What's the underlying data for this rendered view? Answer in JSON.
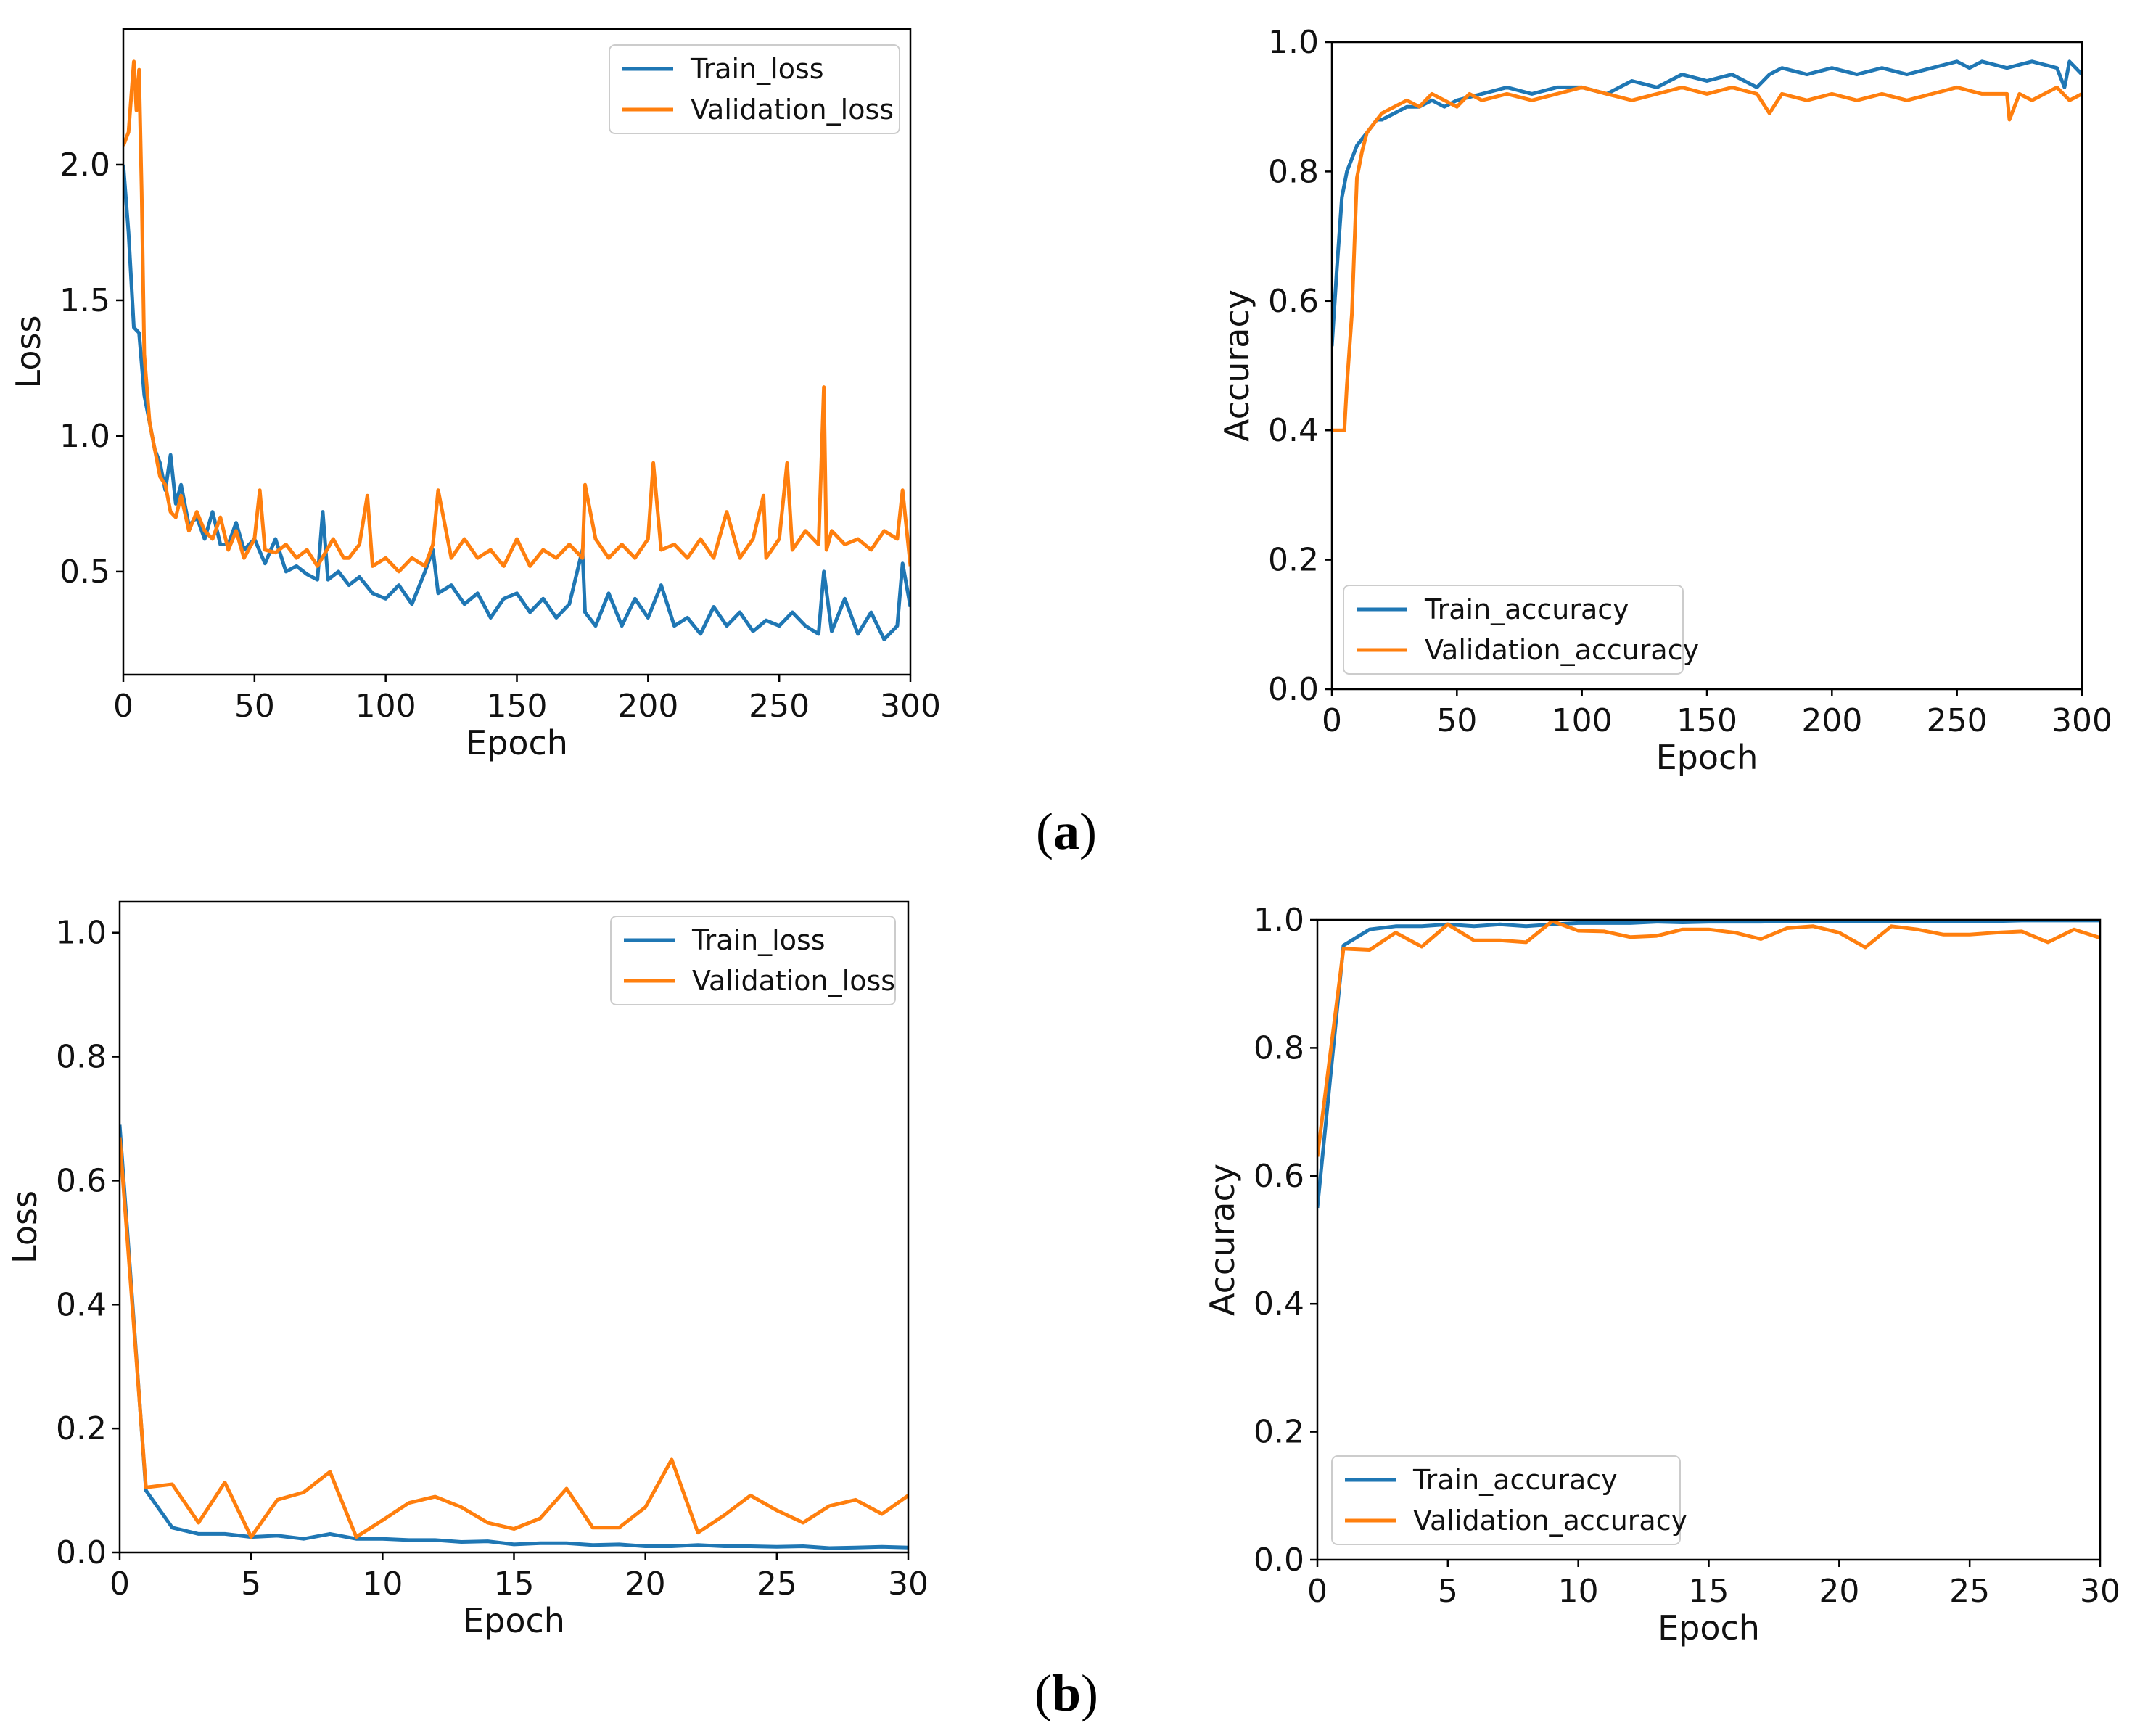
{
  "colors": {
    "train": "#1f77b4",
    "validation": "#ff7f0e",
    "axis": "#000000"
  },
  "captions": {
    "a": {
      "open": "(",
      "letter": "a",
      "close": ")"
    },
    "b": {
      "open": "(",
      "letter": "b",
      "close": ")"
    }
  },
  "chart_data": [
    {
      "id": "a_loss",
      "type": "line",
      "xlabel": "Epoch",
      "ylabel": "Loss",
      "xlim": [
        0,
        300
      ],
      "ylim": [
        0.12,
        2.5
      ],
      "xticks": [
        0,
        50,
        100,
        150,
        200,
        250,
        300
      ],
      "yticks": [
        0.5,
        1.0,
        1.5,
        2.0
      ],
      "xtick_labels": [
        "0",
        "50",
        "100",
        "150",
        "200",
        "250",
        "300"
      ],
      "ytick_labels": [
        "0.5",
        "1.0",
        "1.5",
        "2.0"
      ],
      "legend_position": "top-right",
      "series": [
        {
          "name": "Train_loss",
          "color": "#1f77b4",
          "x": [
            0,
            2,
            4,
            6,
            8,
            10,
            12,
            14,
            16,
            18,
            20,
            22,
            25,
            28,
            31,
            34,
            37,
            40,
            43,
            46,
            50,
            54,
            58,
            62,
            66,
            70,
            74,
            76,
            78,
            82,
            86,
            90,
            95,
            100,
            105,
            110,
            115,
            118,
            120,
            125,
            130,
            135,
            140,
            145,
            150,
            155,
            160,
            165,
            170,
            175,
            176,
            180,
            185,
            190,
            195,
            200,
            205,
            210,
            215,
            220,
            225,
            230,
            235,
            240,
            245,
            250,
            255,
            260,
            265,
            267,
            270,
            275,
            280,
            285,
            290,
            295,
            297,
            300
          ],
          "values": [
            2.0,
            1.75,
            1.4,
            1.38,
            1.15,
            1.05,
            0.95,
            0.9,
            0.8,
            0.93,
            0.75,
            0.82,
            0.67,
            0.7,
            0.62,
            0.72,
            0.6,
            0.6,
            0.68,
            0.58,
            0.62,
            0.53,
            0.62,
            0.5,
            0.52,
            0.49,
            0.47,
            0.72,
            0.47,
            0.5,
            0.45,
            0.48,
            0.42,
            0.4,
            0.45,
            0.38,
            0.5,
            0.58,
            0.42,
            0.45,
            0.38,
            0.42,
            0.33,
            0.4,
            0.42,
            0.35,
            0.4,
            0.33,
            0.38,
            0.58,
            0.35,
            0.3,
            0.42,
            0.3,
            0.4,
            0.33,
            0.45,
            0.3,
            0.33,
            0.27,
            0.37,
            0.3,
            0.35,
            0.28,
            0.32,
            0.3,
            0.35,
            0.3,
            0.27,
            0.5,
            0.28,
            0.4,
            0.27,
            0.35,
            0.25,
            0.3,
            0.53,
            0.37
          ]
        },
        {
          "name": "Validation_loss",
          "color": "#ff7f0e",
          "x": [
            0,
            2,
            4,
            5,
            6,
            7,
            8,
            10,
            12,
            14,
            16,
            18,
            20,
            22,
            25,
            28,
            31,
            34,
            37,
            40,
            43,
            46,
            50,
            52,
            54,
            58,
            62,
            66,
            70,
            74,
            80,
            84,
            86,
            90,
            93,
            95,
            100,
            105,
            110,
            115,
            118,
            120,
            125,
            130,
            135,
            140,
            145,
            150,
            155,
            160,
            165,
            170,
            175,
            176,
            180,
            185,
            190,
            195,
            200,
            202,
            205,
            210,
            215,
            220,
            225,
            230,
            235,
            240,
            244,
            245,
            250,
            253,
            255,
            260,
            265,
            267,
            268,
            270,
            275,
            280,
            285,
            290,
            295,
            297,
            300
          ],
          "values": [
            2.07,
            2.12,
            2.38,
            2.2,
            2.35,
            1.9,
            1.3,
            1.05,
            0.95,
            0.85,
            0.82,
            0.72,
            0.7,
            0.78,
            0.65,
            0.72,
            0.65,
            0.62,
            0.7,
            0.58,
            0.65,
            0.55,
            0.62,
            0.8,
            0.58,
            0.57,
            0.6,
            0.55,
            0.58,
            0.52,
            0.62,
            0.55,
            0.55,
            0.6,
            0.78,
            0.52,
            0.55,
            0.5,
            0.55,
            0.52,
            0.6,
            0.8,
            0.55,
            0.62,
            0.55,
            0.58,
            0.52,
            0.62,
            0.52,
            0.58,
            0.55,
            0.6,
            0.55,
            0.82,
            0.62,
            0.55,
            0.6,
            0.55,
            0.62,
            0.9,
            0.58,
            0.6,
            0.55,
            0.62,
            0.55,
            0.72,
            0.55,
            0.62,
            0.78,
            0.55,
            0.62,
            0.9,
            0.58,
            0.65,
            0.6,
            1.18,
            0.58,
            0.65,
            0.6,
            0.62,
            0.58,
            0.65,
            0.62,
            0.8,
            0.52
          ]
        }
      ]
    },
    {
      "id": "a_accuracy",
      "type": "line",
      "xlabel": "Epoch",
      "ylabel": "Accuracy",
      "xlim": [
        0,
        300
      ],
      "ylim": [
        0.0,
        1.0
      ],
      "xticks": [
        0,
        50,
        100,
        150,
        200,
        250,
        300
      ],
      "yticks": [
        0.0,
        0.2,
        0.4,
        0.6,
        0.8,
        1.0
      ],
      "xtick_labels": [
        "0",
        "50",
        "100",
        "150",
        "200",
        "250",
        "300"
      ],
      "ytick_labels": [
        "0.0",
        "0.2",
        "0.4",
        "0.6",
        "0.8",
        "1.0"
      ],
      "legend_position": "bottom-left",
      "series": [
        {
          "name": "Train_accuracy",
          "color": "#1f77b4",
          "x": [
            0,
            2,
            4,
            6,
            8,
            10,
            12,
            14,
            16,
            18,
            20,
            25,
            30,
            35,
            40,
            45,
            50,
            60,
            70,
            80,
            90,
            100,
            110,
            120,
            130,
            140,
            150,
            160,
            170,
            175,
            180,
            190,
            200,
            210,
            220,
            230,
            240,
            250,
            255,
            260,
            270,
            280,
            290,
            293,
            295,
            300
          ],
          "values": [
            0.53,
            0.65,
            0.76,
            0.8,
            0.82,
            0.84,
            0.85,
            0.86,
            0.87,
            0.88,
            0.88,
            0.89,
            0.9,
            0.9,
            0.91,
            0.9,
            0.91,
            0.92,
            0.93,
            0.92,
            0.93,
            0.93,
            0.92,
            0.94,
            0.93,
            0.95,
            0.94,
            0.95,
            0.93,
            0.95,
            0.96,
            0.95,
            0.96,
            0.95,
            0.96,
            0.95,
            0.96,
            0.97,
            0.96,
            0.97,
            0.96,
            0.97,
            0.96,
            0.93,
            0.97,
            0.95
          ]
        },
        {
          "name": "Validation_accuracy",
          "color": "#ff7f0e",
          "x": [
            0,
            3,
            5,
            6,
            8,
            10,
            12,
            14,
            16,
            18,
            20,
            25,
            30,
            35,
            40,
            45,
            50,
            55,
            60,
            70,
            80,
            90,
            100,
            110,
            120,
            130,
            140,
            150,
            160,
            170,
            175,
            180,
            190,
            200,
            210,
            220,
            230,
            240,
            250,
            260,
            270,
            271,
            275,
            280,
            290,
            295,
            300
          ],
          "values": [
            0.4,
            0.4,
            0.4,
            0.47,
            0.58,
            0.79,
            0.83,
            0.86,
            0.87,
            0.88,
            0.89,
            0.9,
            0.91,
            0.9,
            0.92,
            0.91,
            0.9,
            0.92,
            0.91,
            0.92,
            0.91,
            0.92,
            0.93,
            0.92,
            0.91,
            0.92,
            0.93,
            0.92,
            0.93,
            0.92,
            0.89,
            0.92,
            0.91,
            0.92,
            0.91,
            0.92,
            0.91,
            0.92,
            0.93,
            0.92,
            0.92,
            0.88,
            0.92,
            0.91,
            0.93,
            0.91,
            0.92
          ]
        }
      ]
    },
    {
      "id": "b_loss",
      "type": "line",
      "xlabel": "Epoch",
      "ylabel": "Loss",
      "xlim": [
        0,
        30
      ],
      "ylim": [
        0.0,
        1.05
      ],
      "xticks": [
        0,
        5,
        10,
        15,
        20,
        25,
        30
      ],
      "yticks": [
        0.0,
        0.2,
        0.4,
        0.6,
        0.8,
        1.0
      ],
      "xtick_labels": [
        "0",
        "5",
        "10",
        "15",
        "20",
        "25",
        "30"
      ],
      "ytick_labels": [
        "0.0",
        "0.2",
        "0.4",
        "0.6",
        "0.8",
        "1.0"
      ],
      "legend_position": "top-right",
      "series": [
        {
          "name": "Train_loss",
          "color": "#1f77b4",
          "x": [
            0,
            1,
            2,
            3,
            4,
            5,
            6,
            7,
            8,
            9,
            10,
            11,
            12,
            13,
            14,
            15,
            16,
            17,
            18,
            19,
            20,
            21,
            22,
            23,
            24,
            25,
            26,
            27,
            28,
            29,
            30
          ],
          "values": [
            0.69,
            0.1,
            0.04,
            0.03,
            0.03,
            0.025,
            0.027,
            0.022,
            0.03,
            0.022,
            0.022,
            0.02,
            0.02,
            0.017,
            0.018,
            0.013,
            0.015,
            0.015,
            0.012,
            0.013,
            0.01,
            0.01,
            0.012,
            0.01,
            0.01,
            0.009,
            0.01,
            0.007,
            0.008,
            0.009,
            0.008
          ]
        },
        {
          "name": "Validation_loss",
          "color": "#ff7f0e",
          "x": [
            0,
            1,
            2,
            3,
            4,
            5,
            6,
            7,
            8,
            9,
            10,
            11,
            12,
            13,
            14,
            15,
            16,
            17,
            18,
            19,
            20,
            21,
            22,
            23,
            24,
            25,
            26,
            27,
            28,
            29,
            30
          ],
          "values": [
            0.67,
            0.105,
            0.11,
            0.048,
            0.113,
            0.025,
            0.085,
            0.097,
            0.13,
            0.025,
            0.052,
            0.08,
            0.09,
            0.073,
            0.048,
            0.038,
            0.055,
            0.103,
            0.04,
            0.04,
            0.073,
            0.15,
            0.032,
            0.06,
            0.092,
            0.068,
            0.048,
            0.075,
            0.085,
            0.062,
            0.092
          ]
        }
      ]
    },
    {
      "id": "b_accuracy",
      "type": "line",
      "xlabel": "Epoch",
      "ylabel": "Accuracy",
      "xlim": [
        0,
        30
      ],
      "ylim": [
        0.0,
        1.0
      ],
      "xticks": [
        0,
        5,
        10,
        15,
        20,
        25,
        30
      ],
      "yticks": [
        0.0,
        0.2,
        0.4,
        0.6,
        0.8,
        1.0
      ],
      "xtick_labels": [
        "0",
        "5",
        "10",
        "15",
        "20",
        "25",
        "30"
      ],
      "ytick_labels": [
        "0.0",
        "0.2",
        "0.4",
        "0.6",
        "0.8",
        "1.0"
      ],
      "legend_position": "bottom-left",
      "series": [
        {
          "name": "Train_accuracy",
          "color": "#1f77b4",
          "x": [
            0,
            1,
            2,
            3,
            4,
            5,
            6,
            7,
            8,
            9,
            10,
            11,
            12,
            13,
            14,
            15,
            16,
            17,
            18,
            19,
            20,
            21,
            22,
            23,
            24,
            25,
            26,
            27,
            28,
            29,
            30
          ],
          "values": [
            0.55,
            0.96,
            0.985,
            0.99,
            0.99,
            0.993,
            0.99,
            0.993,
            0.99,
            0.993,
            0.995,
            0.995,
            0.995,
            0.997,
            0.996,
            0.997,
            0.997,
            0.997,
            0.998,
            0.998,
            0.998,
            0.998,
            0.998,
            0.998,
            0.998,
            0.998,
            0.998,
            0.999,
            0.999,
            0.999,
            0.999
          ]
        },
        {
          "name": "Validation_accuracy",
          "color": "#ff7f0e",
          "x": [
            0,
            1,
            2,
            3,
            4,
            5,
            6,
            7,
            8,
            9,
            10,
            11,
            12,
            13,
            14,
            15,
            16,
            17,
            18,
            19,
            20,
            21,
            22,
            23,
            24,
            25,
            26,
            27,
            28,
            29,
            30
          ],
          "values": [
            0.63,
            0.955,
            0.953,
            0.98,
            0.958,
            0.993,
            0.968,
            0.968,
            0.965,
            0.998,
            0.983,
            0.982,
            0.973,
            0.975,
            0.985,
            0.985,
            0.98,
            0.97,
            0.987,
            0.99,
            0.98,
            0.957,
            0.99,
            0.985,
            0.977,
            0.977,
            0.98,
            0.982,
            0.965,
            0.985,
            0.972
          ]
        }
      ]
    }
  ]
}
